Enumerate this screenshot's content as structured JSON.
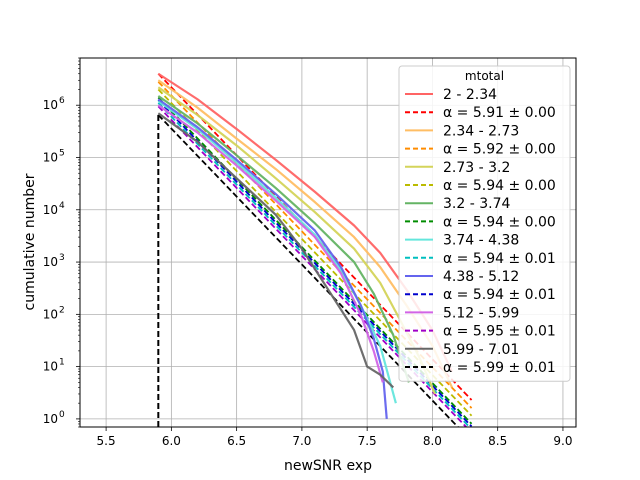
{
  "chart_data": {
    "type": "line",
    "xlabel": "newSNR exp",
    "ylabel": "cumulative number",
    "xlim": [
      5.3,
      9.1
    ],
    "ylim": [
      0.7,
      8000000
    ],
    "yscale": "log",
    "grid": true,
    "threshold_x": 5.9,
    "x_ticks": [
      {
        "value": 5.5,
        "label": "5.5"
      },
      {
        "value": 6.0,
        "label": "6.0"
      },
      {
        "value": 6.5,
        "label": "6.5"
      },
      {
        "value": 7.0,
        "label": "7.0"
      },
      {
        "value": 7.5,
        "label": "7.5"
      },
      {
        "value": 8.0,
        "label": "8.0"
      },
      {
        "value": 8.5,
        "label": "8.5"
      },
      {
        "value": 9.0,
        "label": "9.0"
      }
    ],
    "y_ticks": [
      {
        "value": 1,
        "base": "10",
        "exp": "0"
      },
      {
        "value": 10,
        "base": "10",
        "exp": "1"
      },
      {
        "value": 100,
        "base": "10",
        "exp": "2"
      },
      {
        "value": 1000,
        "base": "10",
        "exp": "3"
      },
      {
        "value": 10000,
        "base": "10",
        "exp": "4"
      },
      {
        "value": 100000,
        "base": "10",
        "exp": "5"
      },
      {
        "value": 1000000,
        "base": "10",
        "exp": "6"
      }
    ],
    "legend": {
      "title": "mtotal",
      "placement": "top-right"
    },
    "series": [
      {
        "name": "2 - 2.34",
        "color": "#ff6464",
        "data": [
          [
            5.9,
            4000000
          ],
          [
            6.2,
            1300000
          ],
          [
            6.5,
            350000
          ],
          [
            6.8,
            90000
          ],
          [
            7.1,
            22000
          ],
          [
            7.4,
            5000
          ],
          [
            7.6,
            1500
          ],
          [
            7.8,
            300
          ],
          [
            8.0,
            50
          ],
          [
            8.15,
            8
          ]
        ]
      },
      {
        "name": "2.34 - 2.73",
        "color": "#ffbe64",
        "data": [
          [
            5.9,
            3000000
          ],
          [
            6.2,
            900000
          ],
          [
            6.5,
            230000
          ],
          [
            6.8,
            60000
          ],
          [
            7.1,
            14000
          ],
          [
            7.4,
            3000
          ],
          [
            7.6,
            800
          ],
          [
            7.8,
            150
          ],
          [
            8.0,
            25
          ],
          [
            8.15,
            4
          ]
        ]
      },
      {
        "name": "2.73 - 3.2",
        "color": "#d4d45a",
        "data": [
          [
            5.9,
            2200000
          ],
          [
            6.2,
            650000
          ],
          [
            6.5,
            170000
          ],
          [
            6.8,
            40000
          ],
          [
            7.1,
            9000
          ],
          [
            7.4,
            1800
          ],
          [
            7.6,
            400
          ],
          [
            7.75,
            80
          ],
          [
            7.9,
            15
          ],
          [
            8.02,
            3
          ]
        ]
      },
      {
        "name": "3.2 - 3.74",
        "color": "#64b464",
        "data": [
          [
            5.9,
            1500000
          ],
          [
            6.2,
            450000
          ],
          [
            6.5,
            110000
          ],
          [
            6.8,
            26000
          ],
          [
            7.1,
            5500
          ],
          [
            7.4,
            1000
          ],
          [
            7.55,
            250
          ],
          [
            7.7,
            40
          ],
          [
            7.82,
            5
          ]
        ]
      },
      {
        "name": "3.74 - 4.38",
        "color": "#64e6dc",
        "data": [
          [
            5.9,
            1200000
          ],
          [
            6.2,
            350000
          ],
          [
            6.5,
            80000
          ],
          [
            6.8,
            17000
          ],
          [
            7.1,
            3300
          ],
          [
            7.3,
            700
          ],
          [
            7.45,
            150
          ],
          [
            7.6,
            25
          ],
          [
            7.72,
            2
          ]
        ]
      },
      {
        "name": "4.38 - 5.12",
        "color": "#6464ee",
        "data": [
          [
            5.9,
            1300000
          ],
          [
            6.2,
            380000
          ],
          [
            6.5,
            90000
          ],
          [
            6.8,
            20000
          ],
          [
            7.1,
            4000
          ],
          [
            7.3,
            800
          ],
          [
            7.45,
            150
          ],
          [
            7.55,
            35
          ],
          [
            7.62,
            8
          ],
          [
            7.65,
            1
          ]
        ]
      },
      {
        "name": "5.12 - 5.99",
        "color": "#d264e6",
        "data": [
          [
            5.9,
            1000000
          ],
          [
            6.2,
            300000
          ],
          [
            6.5,
            70000
          ],
          [
            6.8,
            15000
          ],
          [
            7.1,
            3000
          ],
          [
            7.3,
            600
          ],
          [
            7.45,
            100
          ],
          [
            7.55,
            20
          ],
          [
            7.62,
            5
          ]
        ]
      },
      {
        "name": "5.99 - 7.01",
        "color": "#666666",
        "data": [
          [
            5.9,
            700000
          ],
          [
            6.2,
            200000
          ],
          [
            6.5,
            40000
          ],
          [
            6.8,
            8000
          ],
          [
            7.0,
            1800
          ],
          [
            7.2,
            300
          ],
          [
            7.4,
            50
          ],
          [
            7.5,
            10
          ],
          [
            7.6,
            7
          ],
          [
            7.7,
            4
          ]
        ]
      }
    ],
    "fits": [
      {
        "name": "α = 5.91 ± 0.00",
        "color": "#ff0000",
        "alpha": 5.91,
        "amp": 4000000,
        "x_end": 8.3
      },
      {
        "name": "α = 5.92 ± 0.00",
        "color": "#ff8c00",
        "alpha": 5.92,
        "amp": 2800000,
        "x_end": 8.3
      },
      {
        "name": "α = 5.94 ± 0.00",
        "color": "#bbbb00",
        "alpha": 5.94,
        "amp": 2000000,
        "x_end": 8.3
      },
      {
        "name": "α = 5.94 ± 0.00",
        "color": "#008c00",
        "alpha": 5.94,
        "amp": 1400000,
        "x_end": 8.3
      },
      {
        "name": "α = 5.94 ± 0.01",
        "color": "#00bfbf",
        "alpha": 5.94,
        "amp": 1100000,
        "x_end": 8.3
      },
      {
        "name": "α = 5.94 ± 0.01",
        "color": "#0000cd",
        "alpha": 5.94,
        "amp": 1250000,
        "x_end": 8.3
      },
      {
        "name": "α = 5.95 ± 0.01",
        "color": "#a000c8",
        "alpha": 5.95,
        "amp": 950000,
        "x_end": 8.3
      },
      {
        "name": "α = 5.99 ± 0.01",
        "color": "#000000",
        "alpha": 5.99,
        "amp": 650000,
        "x_end": 8.2
      }
    ]
  }
}
